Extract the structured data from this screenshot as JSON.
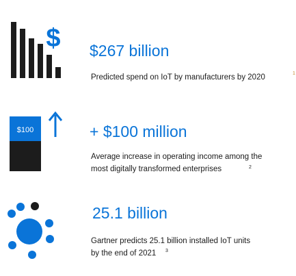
{
  "colors": {
    "accent": "#0a74d8",
    "dark": "#1c1c1c",
    "text": "#1a1a1a",
    "footnote": "#c08a2c"
  },
  "stats": [
    {
      "icon": "bar-chart-dollar-icon",
      "value": "$267 billion",
      "description": [
        "Predicted spend on IoT by manufacturers by 2020"
      ],
      "footnote": "1",
      "icon_text": "$"
    },
    {
      "icon": "increase-block-icon",
      "value": "+ $100 million",
      "description": [
        "Average increase in operating income among the",
        "most digitally transformed enterprises"
      ],
      "footnote": "2",
      "icon_text": "$100"
    },
    {
      "icon": "network-nodes-icon",
      "value": "25.1 billion",
      "description": [
        "Gartner predicts 25.1 billion installed IoT units",
        "by the end of 2021"
      ],
      "footnote": "3"
    }
  ]
}
